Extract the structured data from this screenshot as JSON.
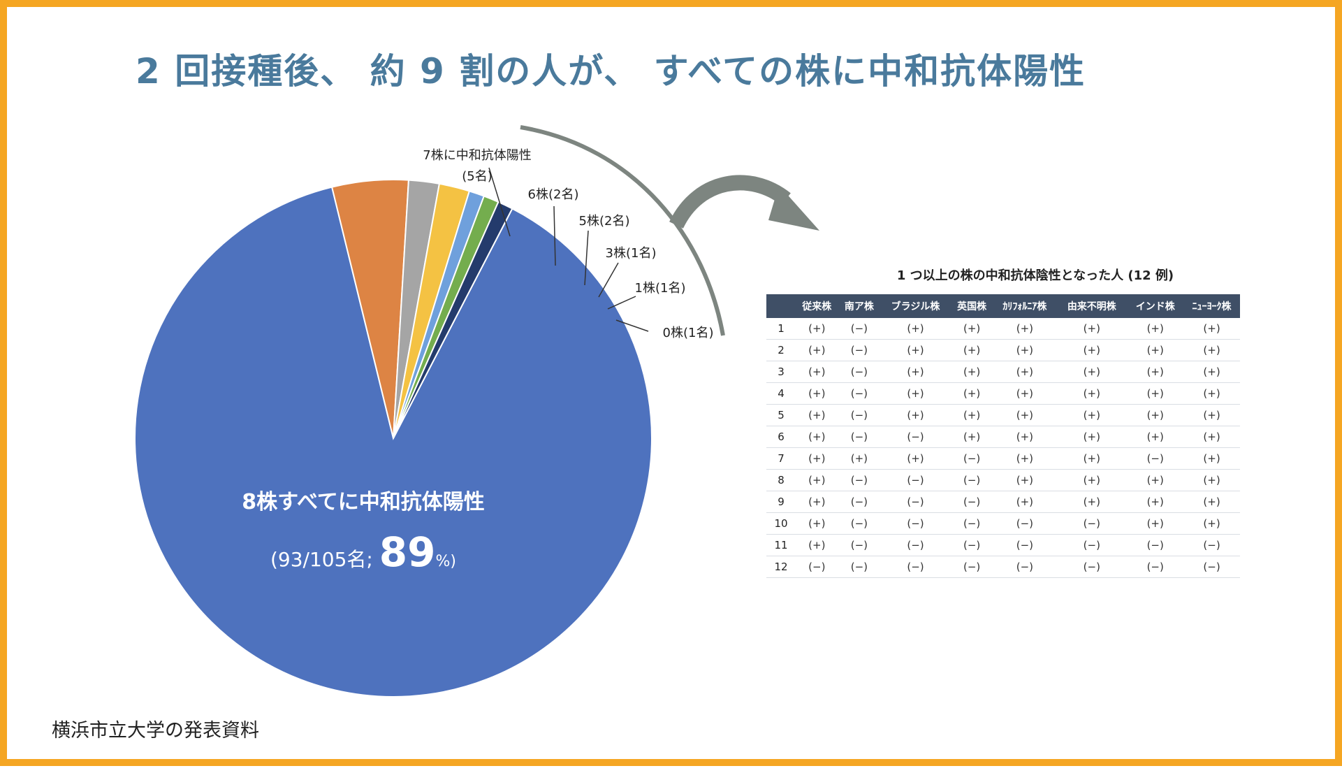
{
  "title": "2 回接種後、 約 9 割の人が、 すべての株に中和抗体陽性",
  "source": "横浜市立大学の発表資料",
  "pie": {
    "center_label": "8株すべてに中和抗体陽性",
    "center_sub_prefix": "(93/105名; ",
    "center_pct": "89",
    "center_sub_suffix": "%)"
  },
  "chart_data": [
    {
      "type": "pie",
      "title": "",
      "total": 105,
      "slices": [
        {
          "label": "8株すべてに中和抗体陽性",
          "value": 93,
          "color": "#4e72be"
        },
        {
          "label": "7株に中和抗体陽性",
          "sub": "(5名)",
          "value": 5,
          "color": "#dd8444"
        },
        {
          "label": "6株(2名)",
          "value": 2,
          "color": "#a5a5a5"
        },
        {
          "label": "5株(2名)",
          "value": 2,
          "color": "#f4c243"
        },
        {
          "label": "3株(1名)",
          "value": 1,
          "color": "#6fa0dc"
        },
        {
          "label": "1株(1名)",
          "value": 1,
          "color": "#74ad4e"
        },
        {
          "label": "0株(1名)",
          "value": 1,
          "color": "#243b6c"
        }
      ]
    },
    {
      "type": "table",
      "title": "1 つ以上の株の中和抗体陰性となった人 (12 例)",
      "columns": [
        "",
        "従来株",
        "南ア株",
        "ブラジル株",
        "英国株",
        "ｶﾘﾌｫﾙﾆｱ株",
        "由来不明株",
        "インド株",
        "ﾆｭｰﾖｰｸ株"
      ],
      "rows": [
        {
          "id": "1",
          "cells": [
            "(+)",
            "(−)",
            "(+)",
            "(+)",
            "(+)",
            "(+)",
            "(+)",
            "(+)"
          ]
        },
        {
          "id": "2",
          "cells": [
            "(+)",
            "(−)",
            "(+)",
            "(+)",
            "(+)",
            "(+)",
            "(+)",
            "(+)"
          ]
        },
        {
          "id": "3",
          "cells": [
            "(+)",
            "(−)",
            "(+)",
            "(+)",
            "(+)",
            "(+)",
            "(+)",
            "(+)"
          ]
        },
        {
          "id": "4",
          "cells": [
            "(+)",
            "(−)",
            "(+)",
            "(+)",
            "(+)",
            "(+)",
            "(+)",
            "(+)"
          ]
        },
        {
          "id": "5",
          "cells": [
            "(+)",
            "(−)",
            "(+)",
            "(+)",
            "(+)",
            "(+)",
            "(+)",
            "(+)"
          ]
        },
        {
          "id": "6",
          "cells": [
            "(+)",
            "(−)",
            "(−)",
            "(+)",
            "(+)",
            "(+)",
            "(+)",
            "(+)"
          ]
        },
        {
          "id": "7",
          "cells": [
            "(+)",
            "(+)",
            "(+)",
            "(−)",
            "(+)",
            "(+)",
            "(−)",
            "(+)"
          ]
        },
        {
          "id": "8",
          "cells": [
            "(+)",
            "(−)",
            "(−)",
            "(−)",
            "(+)",
            "(+)",
            "(+)",
            "(+)"
          ]
        },
        {
          "id": "9",
          "cells": [
            "(+)",
            "(−)",
            "(−)",
            "(−)",
            "(+)",
            "(+)",
            "(+)",
            "(+)"
          ]
        },
        {
          "id": "10",
          "cells": [
            "(+)",
            "(−)",
            "(−)",
            "(−)",
            "(−)",
            "(−)",
            "(+)",
            "(+)"
          ]
        },
        {
          "id": "11",
          "cells": [
            "(+)",
            "(−)",
            "(−)",
            "(−)",
            "(−)",
            "(−)",
            "(−)",
            "(−)"
          ]
        },
        {
          "id": "12",
          "cells": [
            "(−)",
            "(−)",
            "(−)",
            "(−)",
            "(−)",
            "(−)",
            "(−)",
            "(−)"
          ]
        }
      ]
    }
  ],
  "table": {
    "title": "1 つ以上の株の中和抗体陰性となった人 (12 例)"
  }
}
